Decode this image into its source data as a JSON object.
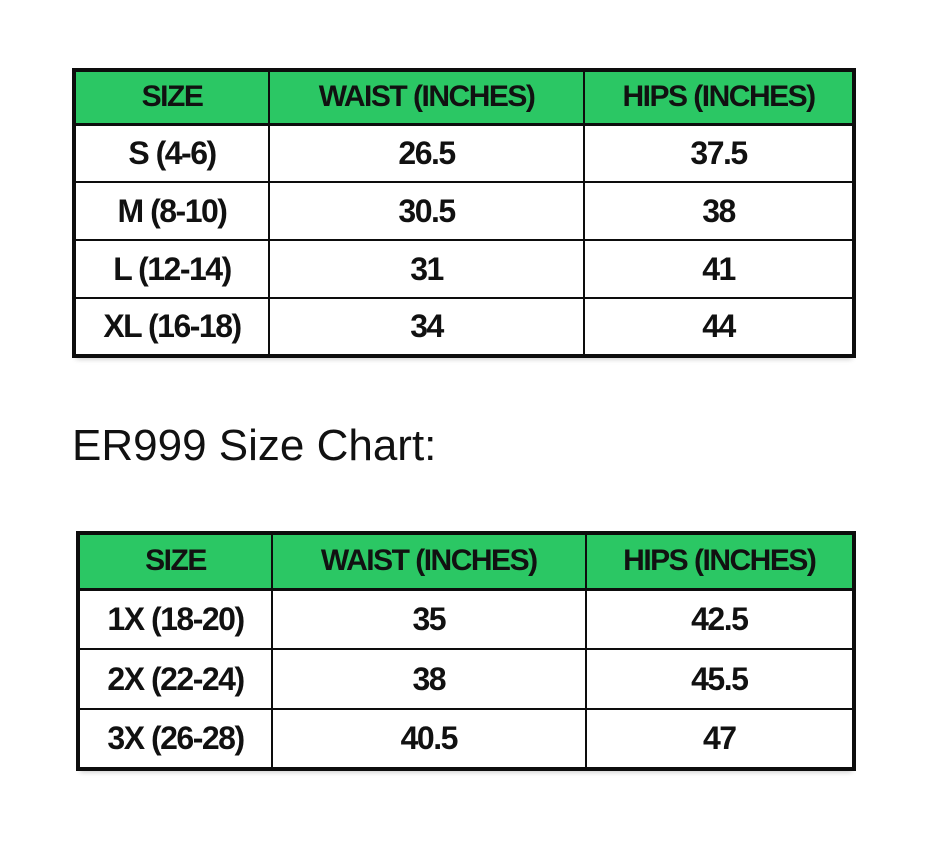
{
  "label": {
    "text": "ER999 Size Chart:"
  },
  "tables": [
    {
      "name": "regular-size-chart",
      "headers": [
        "SIZE",
        "WAIST (INCHES)",
        "HIPS (INCHES)"
      ],
      "rows": [
        [
          "S (4-6)",
          "26.5",
          "37.5"
        ],
        [
          "M (8-10)",
          "30.5",
          "38"
        ],
        [
          "L (12-14)",
          "31",
          "41"
        ],
        [
          "XL (16-18)",
          "34",
          "44"
        ]
      ]
    },
    {
      "name": "plus-size-chart",
      "headers": [
        "SIZE",
        "WAIST (INCHES)",
        "HIPS (INCHES)"
      ],
      "rows": [
        [
          "1X (18-20)",
          "35",
          "42.5"
        ],
        [
          "2X (22-24)",
          "38",
          "45.5"
        ],
        [
          "3X (26-28)",
          "40.5",
          "47"
        ]
      ]
    }
  ],
  "colors": {
    "header_bg": "#2bc764",
    "border": "#0d0d0d",
    "text": "#111111"
  }
}
